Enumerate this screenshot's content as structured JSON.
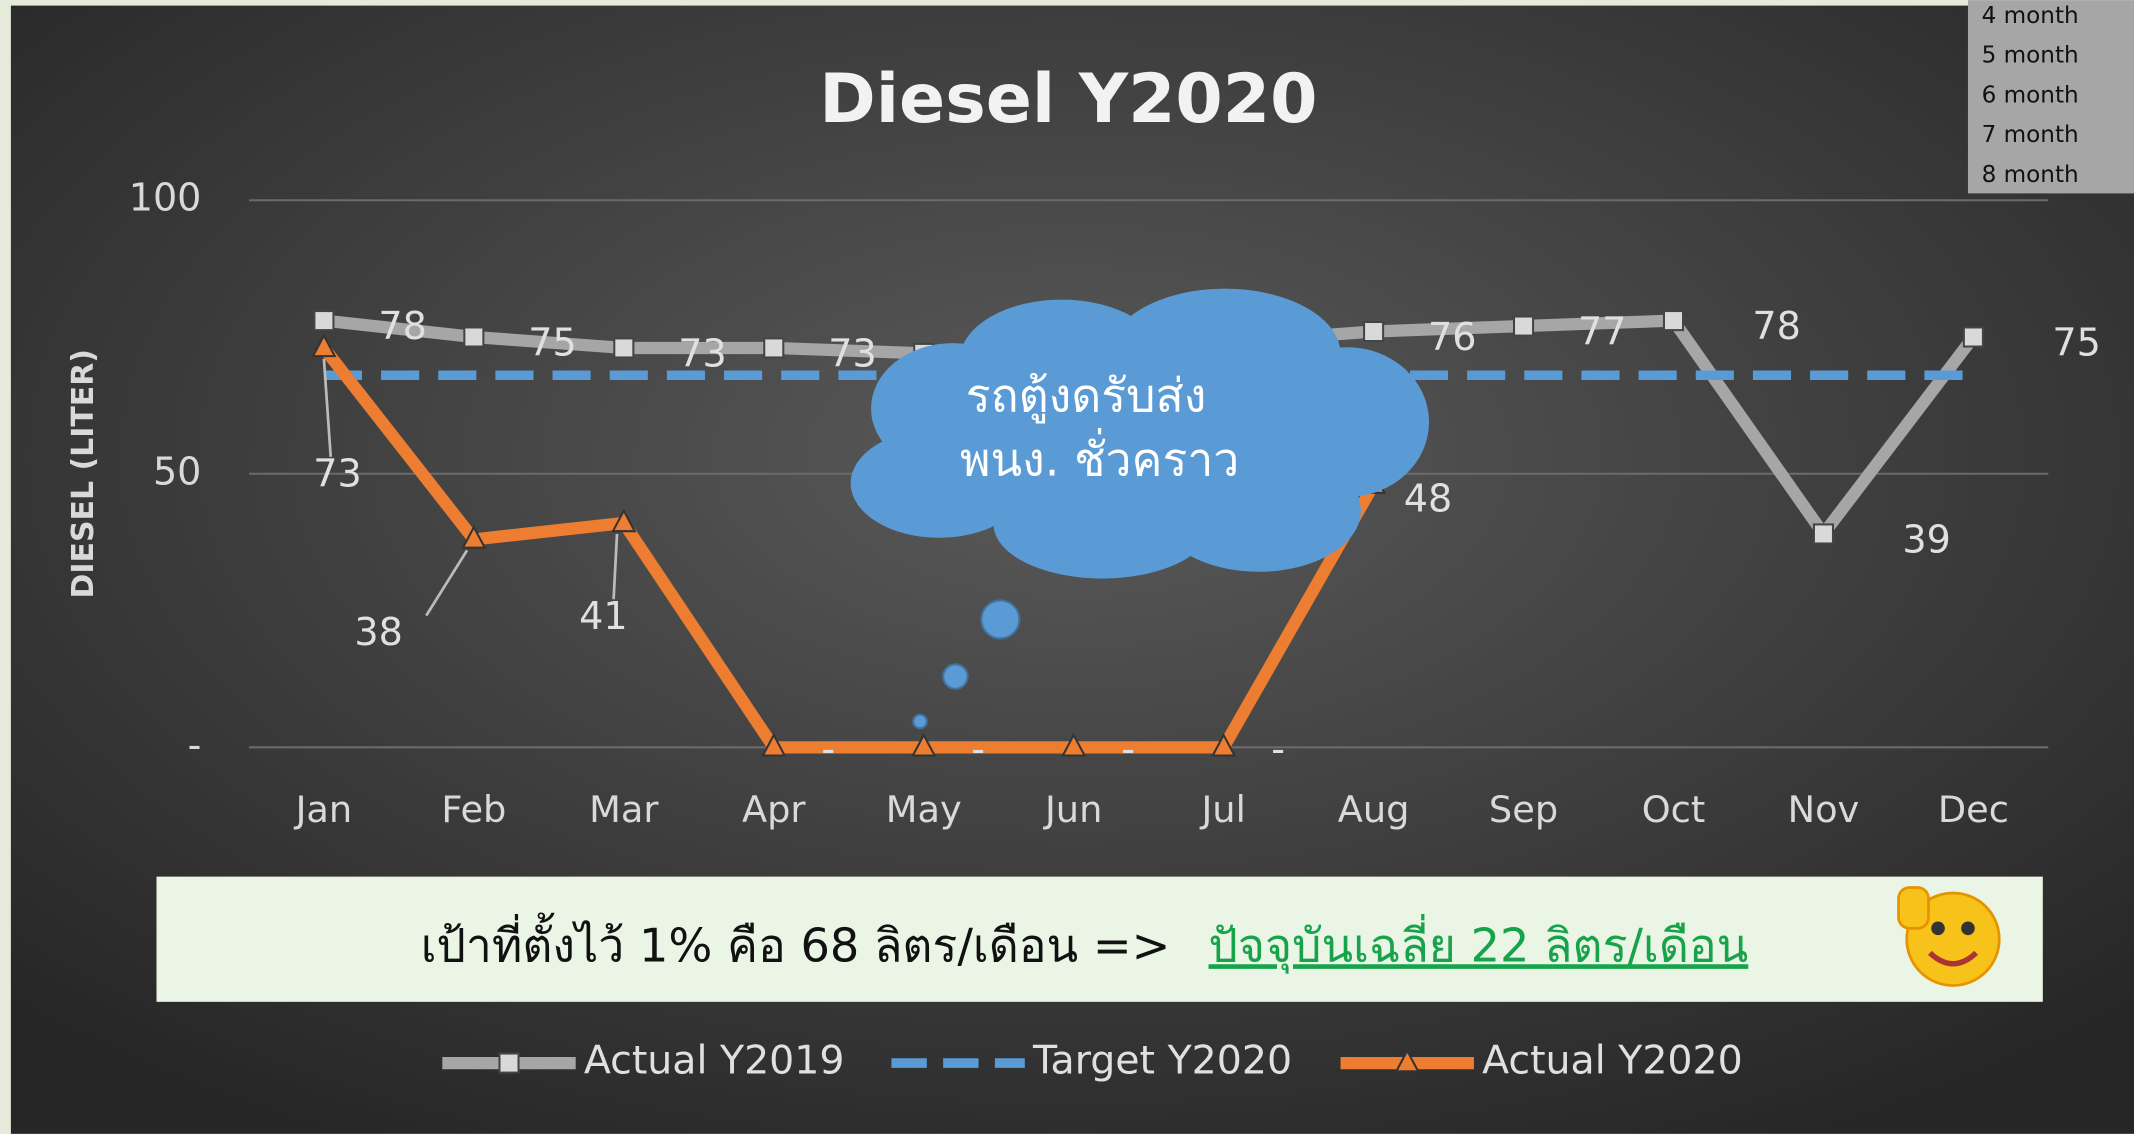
{
  "chart_data": {
    "type": "line",
    "title": "Diesel Y2020",
    "y_axis_label": "DIESEL (LITER)",
    "categories": [
      "Jan",
      "Feb",
      "Mar",
      "Apr",
      "May",
      "Jun",
      "Jul",
      "Aug",
      "Sep",
      "Oct",
      "Nov",
      "Dec"
    ],
    "ylim": [
      0,
      100
    ],
    "yticks": [
      {
        "value": 0,
        "label": "-"
      },
      50,
      100
    ],
    "grid": true,
    "legend": "bottom",
    "series": [
      {
        "name": "Actual Y2019",
        "color": "#a6a6a6",
        "marker": "square",
        "values": [
          78,
          75,
          73,
          73,
          72,
          73,
          74,
          76,
          77,
          78,
          39,
          75
        ]
      },
      {
        "name": "Target Y2020",
        "color": "#5b9bd5",
        "dashed": true,
        "values": [
          68,
          68,
          68,
          68,
          68,
          68,
          68,
          68,
          68,
          68,
          68,
          68
        ]
      },
      {
        "name": "Actual Y2020",
        "color": "#ed7d31",
        "marker": "triangle",
        "values": [
          73,
          38,
          41,
          0,
          0,
          0,
          0,
          48,
          null,
          null,
          null,
          null
        ],
        "value_labels": [
          "73",
          "38",
          "41",
          "-",
          "-",
          "-",
          "-",
          "48",
          null,
          null,
          null,
          null
        ]
      }
    ],
    "annotation": [
      "รถตู้งดรับส่ง",
      "พนง. ชั่วคราว"
    ],
    "banner": {
      "text": "เป้าที่ตั้งไว้ 1% คือ 68 ลิตร/เดือน =>",
      "highlight": "ปัจจุบันเฉลี่ย 22 ลิตร/เดือน"
    },
    "side_list": [
      "4 month",
      "5 month",
      "6 month",
      "7 month",
      "8 month"
    ]
  }
}
